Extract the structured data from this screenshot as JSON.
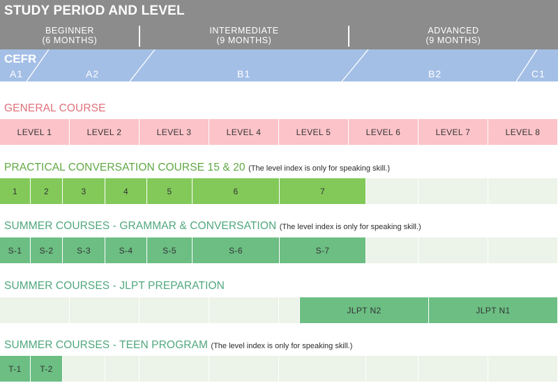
{
  "header": {
    "title": "STUDY PERIOD AND LEVEL",
    "periods": [
      {
        "name": "BEGINNER",
        "duration": "(6 MONTHS)"
      },
      {
        "name": "INTERMEDIATE",
        "duration": "(9 MONTHS)"
      },
      {
        "name": "ADVANCED",
        "duration": "(9 MONTHS)"
      }
    ]
  },
  "cefr": {
    "label": "CEFR",
    "levels": [
      "A1",
      "A2",
      "B1",
      "B2",
      "C1"
    ]
  },
  "sections": {
    "general": {
      "title": "GENERAL COURSE",
      "cells": [
        "LEVEL 1",
        "LEVEL 2",
        "LEVEL 3",
        "LEVEL 4",
        "LEVEL 5",
        "LEVEL 6",
        "LEVEL 7",
        "LEVEL 8"
      ]
    },
    "practical": {
      "title": "PRACTICAL CONVERSATION COURSE 15 & 20",
      "note": "(The level index is only for speaking skill.)",
      "cells": [
        "1",
        "2",
        "3",
        "4",
        "5",
        "6",
        "7"
      ]
    },
    "summer_grammar": {
      "title": "SUMMER COURSES - GRAMMAR & CONVERSATION",
      "note": "(The level index is only for speaking skill.)",
      "cells": [
        "S-1",
        "S-2",
        "S-3",
        "S-4",
        "S-5",
        "S-6",
        "S-7"
      ]
    },
    "summer_jlpt": {
      "title": "SUMMER COURSES - JLPT PREPARATION",
      "cells": [
        "JLPT N2",
        "JLPT N1"
      ]
    },
    "summer_teen": {
      "title": "SUMMER COURSES - TEEN PROGRAM",
      "note": "(The level index is only for speaking skill.)",
      "cells": [
        "T-1",
        "T-2"
      ]
    }
  },
  "colors": {
    "header_gray": "#8c8c8c",
    "cefr_blue": "#a4bfe6",
    "general_pink": "#fcc3c8",
    "practical_green": "#82c95a",
    "summer_teal": "#6cbe83",
    "empty_cell": "#ecf3e8"
  }
}
